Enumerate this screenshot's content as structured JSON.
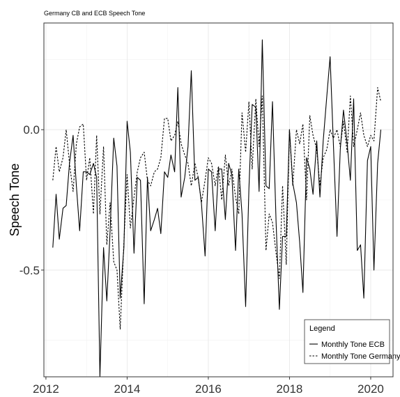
{
  "chart_data": {
    "type": "line",
    "title": "Germany CB and ECB Speech Tone",
    "xlabel": "",
    "ylabel": "Speech Tone",
    "xlim": [
      2011.95,
      2020.55
    ],
    "ylim": [
      -0.88,
      0.38
    ],
    "x_ticks": [
      2012,
      2014,
      2016,
      2018,
      2020
    ],
    "x_tick_labels": [
      "2012",
      "2014",
      "2016",
      "2018",
      "2020"
    ],
    "y_ticks": [
      0.0,
      -0.5
    ],
    "y_tick_labels": [
      "0.0",
      "-0.5"
    ],
    "grid": true,
    "legend": {
      "title": "Legend",
      "placement": "bottom-right",
      "entries": [
        {
          "label": "Monthly Tone ECB",
          "line_style": "solid"
        },
        {
          "label": "Monthly Tone Germany",
          "line_style": "dotted"
        }
      ]
    },
    "series": [
      {
        "name": "Monthly Tone ECB",
        "line_style": "solid",
        "color": "#000000",
        "x": [
          2012.17,
          2012.25,
          2012.33,
          2012.42,
          2012.5,
          2012.58,
          2012.67,
          2012.75,
          2012.83,
          2012.92,
          2013.0,
          2013.08,
          2013.17,
          2013.25,
          2013.33,
          2013.42,
          2013.5,
          2013.58,
          2013.67,
          2013.75,
          2013.83,
          2013.92,
          2014.0,
          2014.08,
          2014.17,
          2014.25,
          2014.33,
          2014.42,
          2014.5,
          2014.58,
          2014.67,
          2014.75,
          2014.83,
          2014.92,
          2015.0,
          2015.08,
          2015.17,
          2015.25,
          2015.33,
          2015.42,
          2015.5,
          2015.58,
          2015.67,
          2015.75,
          2015.83,
          2015.92,
          2016.0,
          2016.08,
          2016.17,
          2016.25,
          2016.33,
          2016.42,
          2016.5,
          2016.58,
          2016.67,
          2016.75,
          2016.83,
          2016.92,
          2017.0,
          2017.08,
          2017.17,
          2017.25,
          2017.33,
          2017.42,
          2017.5,
          2017.58,
          2017.67,
          2017.75,
          2017.83,
          2017.92,
          2018.0,
          2018.08,
          2018.17,
          2018.25,
          2018.33,
          2018.42,
          2018.5,
          2018.58,
          2018.67,
          2018.75,
          2018.83,
          2018.92,
          2019.0,
          2019.08,
          2019.17,
          2019.25,
          2019.33,
          2019.42,
          2019.5,
          2019.58,
          2019.67,
          2019.75,
          2019.83,
          2019.92,
          2020.0,
          2020.08,
          2020.17,
          2020.25
        ],
        "values": [
          -0.42,
          -0.23,
          -0.39,
          -0.28,
          -0.27,
          -0.12,
          -0.02,
          -0.2,
          -0.36,
          -0.15,
          -0.15,
          -0.16,
          -0.12,
          -0.17,
          -0.88,
          -0.42,
          -0.61,
          -0.36,
          -0.03,
          -0.13,
          -0.6,
          -0.42,
          0.03,
          -0.08,
          -0.44,
          -0.17,
          -0.18,
          -0.62,
          -0.17,
          -0.36,
          -0.32,
          -0.28,
          -0.37,
          -0.15,
          -0.17,
          -0.09,
          -0.15,
          0.15,
          -0.24,
          -0.17,
          -0.06,
          0.21,
          -0.18,
          -0.17,
          -0.26,
          -0.45,
          -0.14,
          -0.15,
          -0.36,
          -0.14,
          -0.14,
          -0.32,
          -0.12,
          -0.16,
          -0.43,
          -0.14,
          -0.3,
          -0.63,
          -0.21,
          0.09,
          0.08,
          -0.22,
          0.32,
          -0.2,
          -0.21,
          0.1,
          -0.33,
          -0.64,
          -0.38,
          -0.38,
          0.0,
          -0.19,
          -0.26,
          -0.4,
          -0.58,
          -0.1,
          -0.14,
          -0.23,
          -0.04,
          -0.24,
          -0.04,
          0.12,
          0.26,
          -0.05,
          -0.38,
          -0.07,
          0.07,
          -0.05,
          -0.18,
          0.11,
          -0.43,
          -0.41,
          -0.6,
          -0.11,
          -0.06,
          -0.5,
          -0.12,
          0.0
        ],
        "comment_ignore": ""
      },
      {
        "name": "Monthly Tone Germany",
        "line_style": "dotted",
        "color": "#000000",
        "x": [
          2012.17,
          2012.25,
          2012.33,
          2012.42,
          2012.5,
          2012.58,
          2012.67,
          2012.75,
          2012.83,
          2012.92,
          2013.0,
          2013.08,
          2013.17,
          2013.25,
          2013.33,
          2013.42,
          2013.5,
          2013.58,
          2013.67,
          2013.75,
          2013.83,
          2013.92,
          2014.0,
          2014.08,
          2014.17,
          2014.25,
          2014.33,
          2014.42,
          2014.5,
          2014.58,
          2014.67,
          2014.75,
          2014.83,
          2014.92,
          2015.0,
          2015.08,
          2015.17,
          2015.25,
          2015.33,
          2015.42,
          2015.5,
          2015.58,
          2015.67,
          2015.75,
          2015.83,
          2015.92,
          2016.0,
          2016.08,
          2016.17,
          2016.25,
          2016.33,
          2016.42,
          2016.5,
          2016.58,
          2016.67,
          2016.75,
          2016.83,
          2016.92,
          2017.0,
          2017.08,
          2017.17,
          2017.25,
          2017.33,
          2017.42,
          2017.5,
          2017.58,
          2017.67,
          2017.75,
          2017.83,
          2017.92,
          2018.0,
          2018.08,
          2018.17,
          2018.25,
          2018.33,
          2018.42,
          2018.5,
          2018.58,
          2018.67,
          2018.75,
          2018.83,
          2018.92,
          2019.0,
          2019.08,
          2019.17,
          2019.25,
          2019.33,
          2019.42,
          2019.5,
          2019.58,
          2019.67,
          2019.75,
          2019.83,
          2019.92,
          2020.0,
          2020.08,
          2020.17,
          2020.25
        ],
        "values": [
          -0.18,
          -0.06,
          -0.15,
          -0.1,
          0.0,
          -0.12,
          -0.22,
          -0.05,
          0.01,
          0.02,
          -0.18,
          -0.1,
          -0.3,
          -0.02,
          -0.3,
          -0.06,
          -0.41,
          -0.26,
          -0.47,
          -0.5,
          -0.71,
          -0.4,
          -0.16,
          -0.35,
          -0.24,
          -0.15,
          -0.1,
          -0.08,
          -0.18,
          -0.2,
          -0.15,
          -0.14,
          -0.1,
          0.04,
          0.04,
          -0.04,
          -0.02,
          0.03,
          -0.05,
          -0.09,
          -0.12,
          -0.2,
          -0.12,
          -0.17,
          -0.26,
          -0.18,
          -0.1,
          -0.12,
          -0.2,
          -0.13,
          -0.25,
          -0.09,
          -0.2,
          -0.14,
          -0.24,
          -0.3,
          0.06,
          -0.08,
          0.1,
          -0.14,
          0.11,
          -0.06,
          0.12,
          -0.43,
          -0.3,
          -0.33,
          -0.44,
          -0.53,
          -0.2,
          -0.48,
          0.0,
          -0.2,
          0.0,
          -0.05,
          0.02,
          -0.25,
          0.05,
          -0.02,
          -0.07,
          -0.2,
          -0.1,
          -0.07,
          0.0,
          -0.03,
          0.0,
          -0.06,
          0.03,
          -0.08,
          0.12,
          -0.06,
          0.0,
          0.06,
          -0.02,
          -0.06,
          -0.02,
          -0.04,
          0.15,
          0.1
        ]
      }
    ]
  }
}
